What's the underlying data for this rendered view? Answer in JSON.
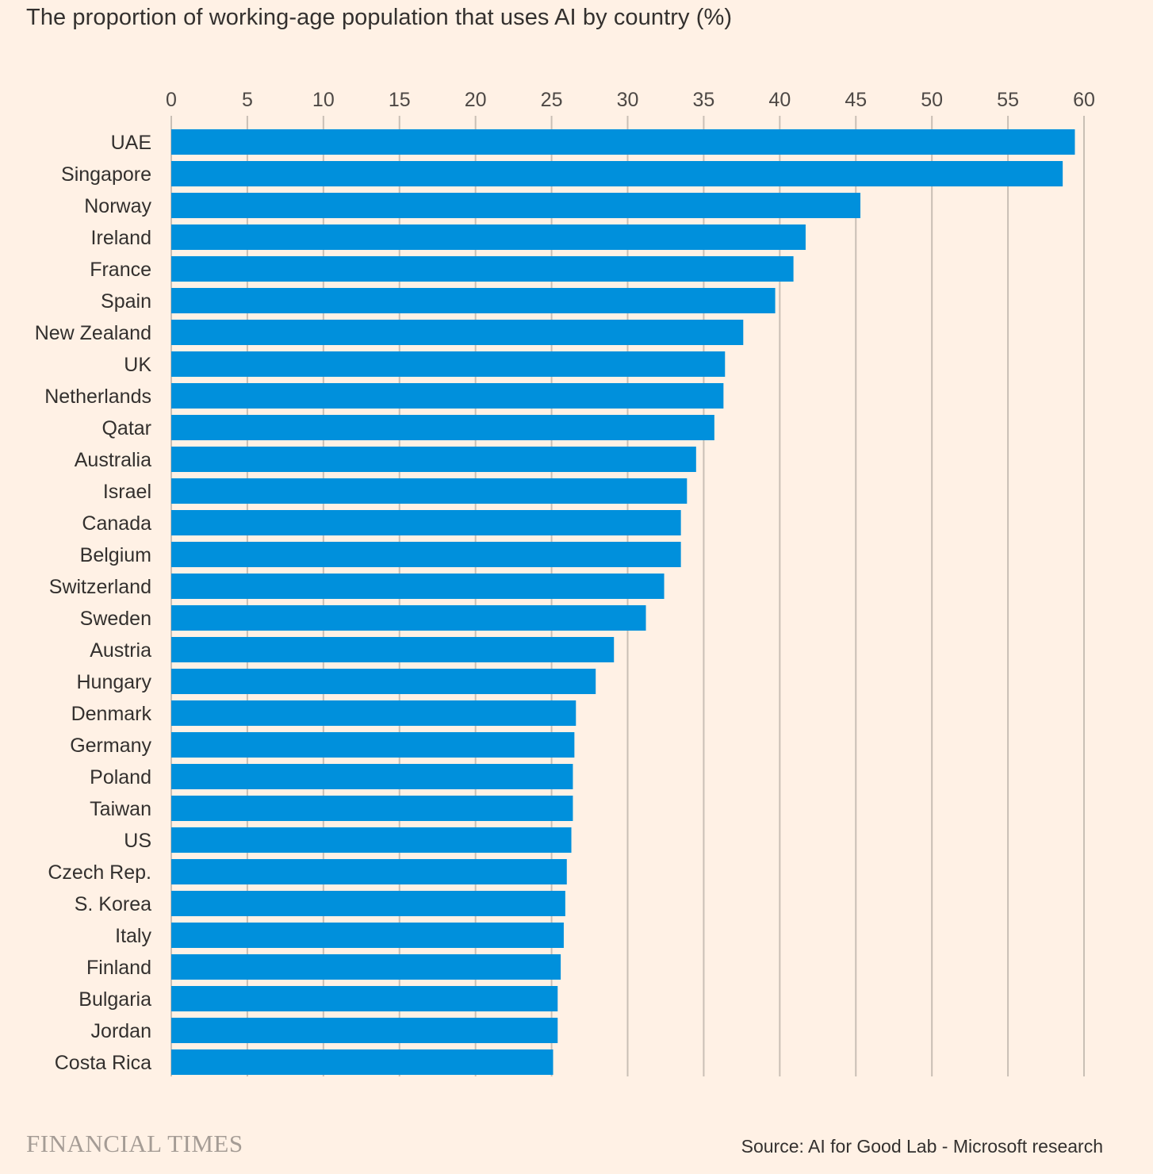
{
  "title": "The proportion of working-age population that uses AI by country (%)",
  "source": "Source: AI for Good Lab - Microsoft research",
  "logo_text": "FINANCIAL TIMES",
  "colors": {
    "bar": "#0090DC",
    "background": "#FFF1E5",
    "grid": "#C9BFB5"
  },
  "chart_data": {
    "type": "bar",
    "orientation": "horizontal",
    "title": "The proportion of working-age population that uses AI by country (%)",
    "xlim": [
      0,
      60
    ],
    "xticks": [
      0,
      5,
      10,
      15,
      20,
      25,
      30,
      35,
      40,
      45,
      50,
      55,
      60
    ],
    "x_axis_position": "top",
    "grid": true,
    "categories": [
      "UAE",
      "Singapore",
      "Norway",
      "Ireland",
      "France",
      "Spain",
      "New Zealand",
      "UK",
      "Netherlands",
      "Qatar",
      "Australia",
      "Israel",
      "Canada",
      "Belgium",
      "Switzerland",
      "Sweden",
      "Austria",
      "Hungary",
      "Denmark",
      "Germany",
      "Poland",
      "Taiwan",
      "US",
      "Czech Rep.",
      "S. Korea",
      "Italy",
      "Finland",
      "Bulgaria",
      "Jordan",
      "Costa Rica"
    ],
    "values": [
      59.4,
      58.6,
      45.3,
      41.7,
      40.9,
      39.7,
      37.6,
      36.4,
      36.3,
      35.7,
      34.5,
      33.9,
      33.5,
      33.5,
      32.4,
      31.2,
      29.1,
      27.9,
      26.6,
      26.5,
      26.4,
      26.4,
      26.3,
      26.0,
      25.9,
      25.8,
      25.6,
      25.4,
      25.4,
      25.1
    ]
  }
}
